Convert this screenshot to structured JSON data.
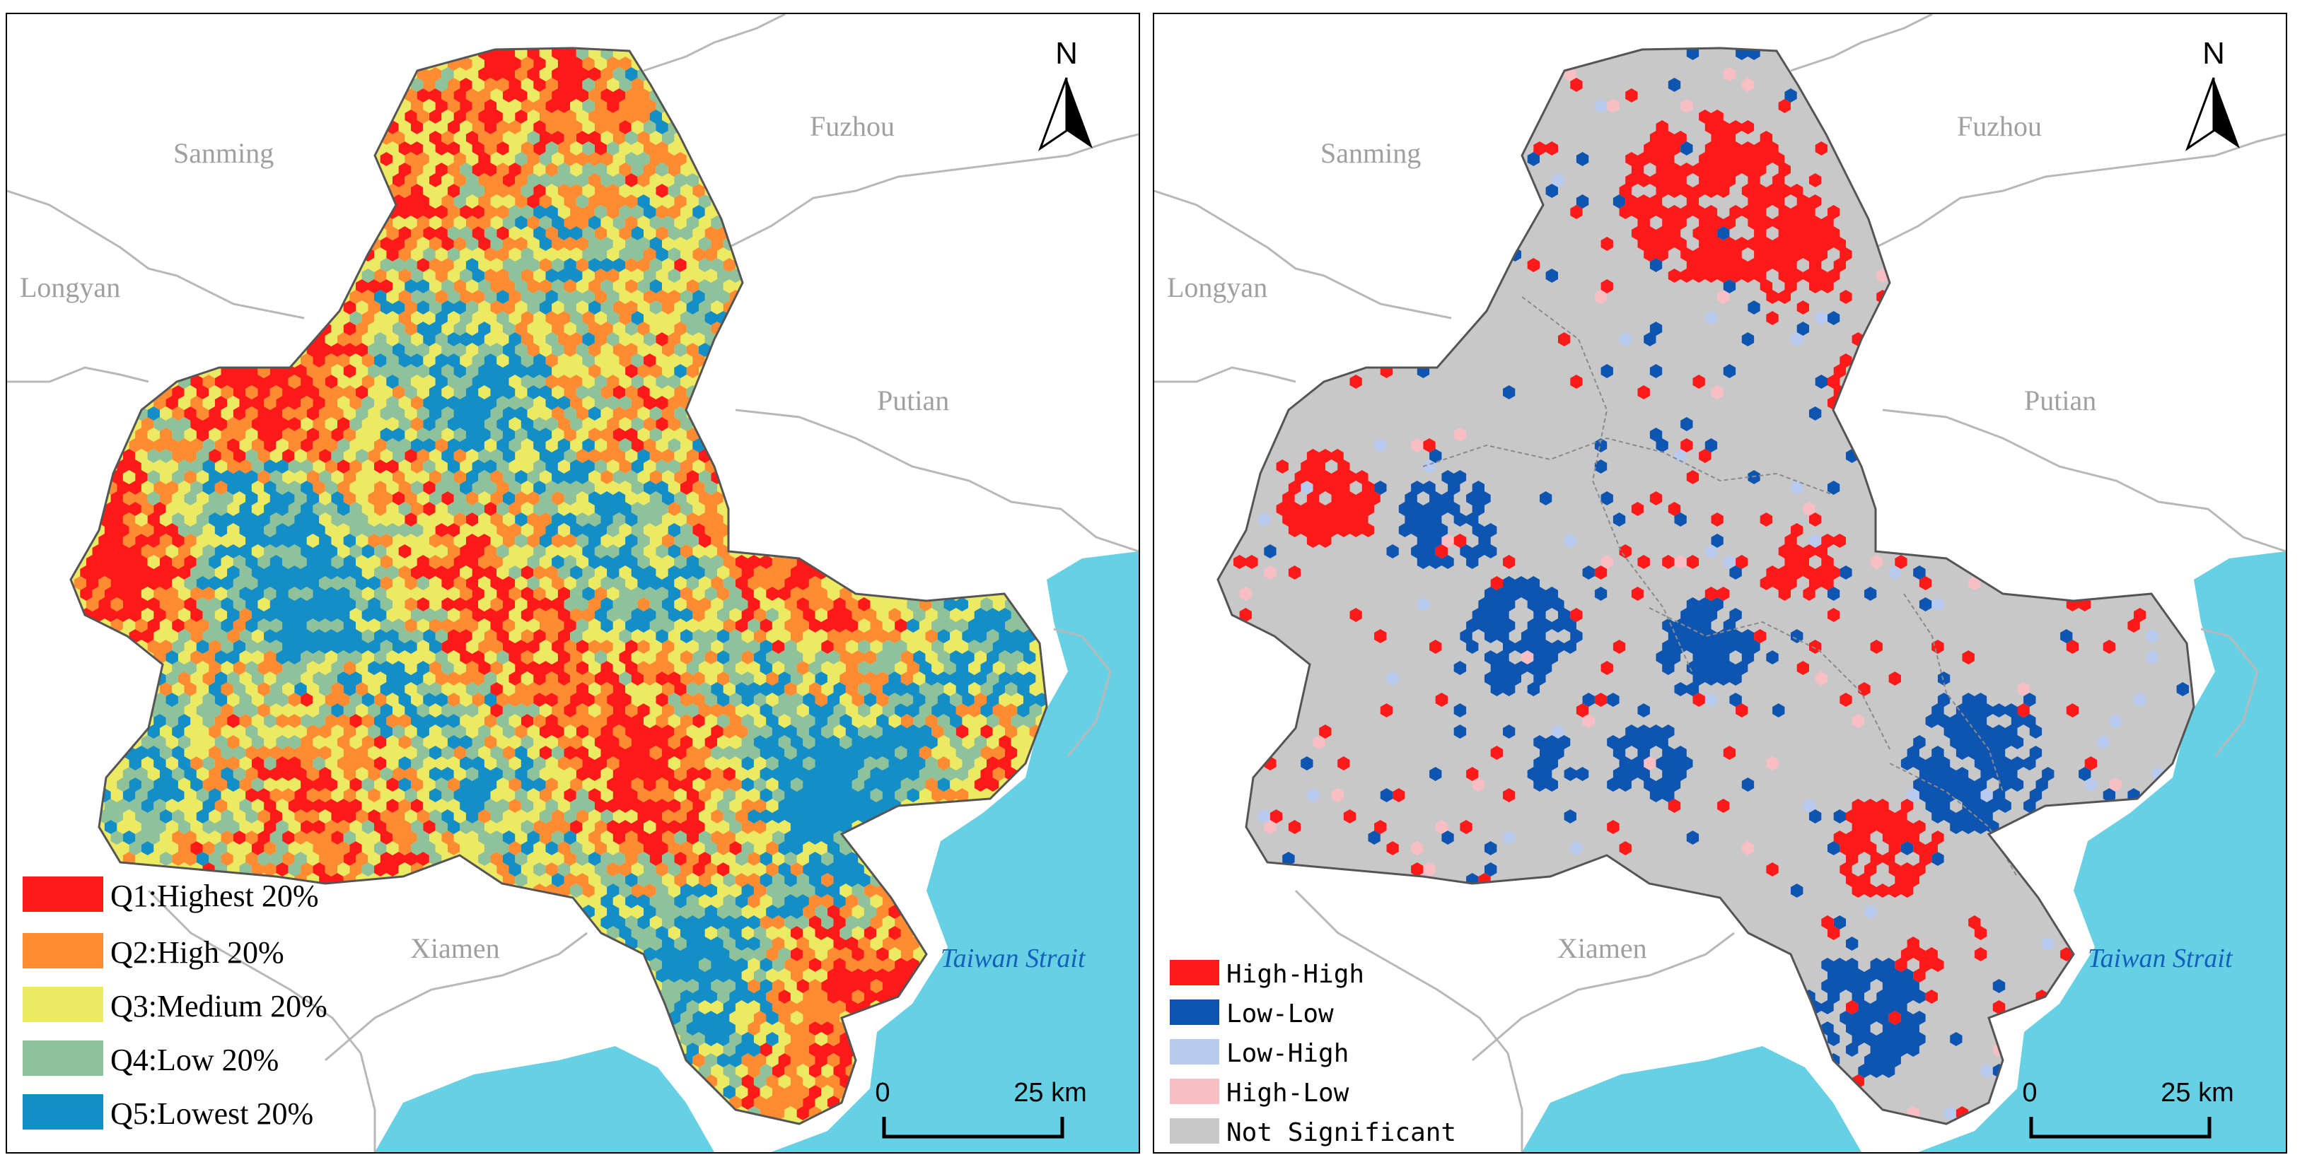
{
  "panels": [
    {
      "id": "left",
      "cities": [
        "Sanming",
        "Fuzhou",
        "Longyan",
        "Putian",
        "Xiamen"
      ],
      "strait_label": "Taiwan Strait",
      "north_label": "N",
      "scale": {
        "start": "0",
        "end": "25 km"
      },
      "legend": [
        {
          "label": "Q1:Highest 20%",
          "color": "#ff1a1a"
        },
        {
          "label": "Q2:High 20%",
          "color": "#ff8c33"
        },
        {
          "label": "Q3:Medium 20%",
          "color": "#ece963"
        },
        {
          "label": "Q4:Low 20%",
          "color": "#8fc29b"
        },
        {
          "label": "Q5:Lowest 20%",
          "color": "#138ec6"
        }
      ],
      "class_shares": [
        0.2,
        0.2,
        0.2,
        0.2,
        0.2
      ]
    },
    {
      "id": "right",
      "cities": [
        "Sanming",
        "Fuzhou",
        "Longyan",
        "Putian",
        "Xiamen"
      ],
      "strait_label": "Taiwan Strait",
      "north_label": "N",
      "scale": {
        "start": "0",
        "end": "25 km"
      },
      "legend": [
        {
          "label": "High-High",
          "color": "#ff1a1a"
        },
        {
          "label": "Low-Low",
          "color": "#0d55b0"
        },
        {
          "label": "Low-High",
          "color": "#b8caee"
        },
        {
          "label": "High-Low",
          "color": "#f7bfc4"
        },
        {
          "label": "Not Significant",
          "color": "#c8c8c8"
        }
      ]
    }
  ],
  "colors": {
    "sea": "#66d1e5",
    "frame": "#000000",
    "boundary": "#b8b8b8"
  }
}
